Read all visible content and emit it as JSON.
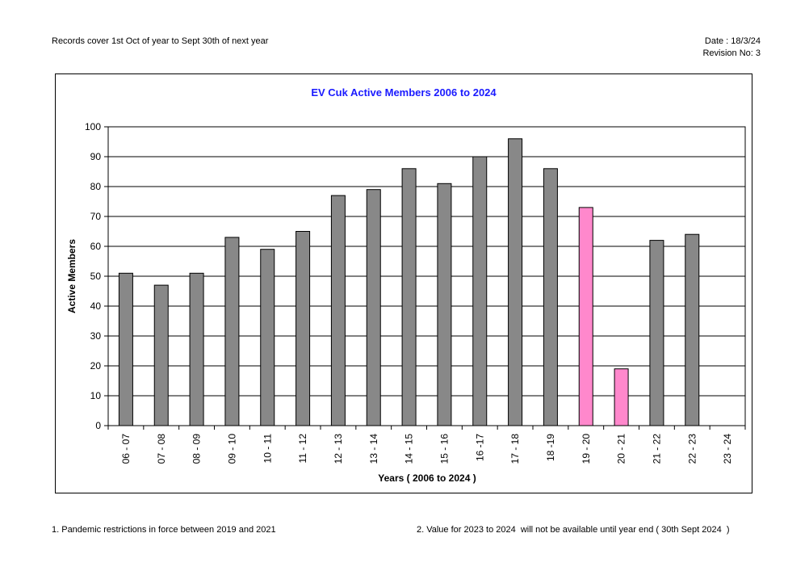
{
  "header": {
    "records_note": "Records cover 1st Oct of year to Sept 30th of next year",
    "date": "Date : 18/3/24",
    "revision": "Revision No: 3"
  },
  "chart_data": {
    "type": "bar",
    "title": "EV Cuk Active Members 2006 to 2024",
    "xlabel": "Years ( 2006 to 2024 )",
    "ylabel": "Active Members",
    "ylim": [
      0,
      100
    ],
    "yticks": [
      0,
      10,
      20,
      30,
      40,
      50,
      60,
      70,
      80,
      90,
      100
    ],
    "grid": true,
    "categories": [
      "06 - 07",
      "07 - 08",
      "08 - 09",
      "09 - 10",
      "10 - 11",
      "11 - 12",
      "12 - 13",
      "13 - 14",
      "14 - 15",
      "15 - 16",
      "16 -17",
      "17 - 18",
      "18 -19",
      "19 - 20",
      "20 - 21",
      "21 - 22",
      "22 - 23",
      "23 - 24"
    ],
    "values": [
      51,
      47,
      51,
      63,
      59,
      65,
      77,
      79,
      86,
      81,
      90,
      96,
      86,
      73,
      19,
      62,
      64,
      null
    ],
    "colors": {
      "default": "#888888",
      "highlight": "#ff88cc",
      "title": "#1a1aff"
    },
    "highlight_categories": [
      "19 - 20",
      "20 - 21"
    ]
  },
  "notes": {
    "note1": "1. Pandemic restrictions in force between 2019 and 2021",
    "note2": "2. Value for 2023 to 2024  will not be available until year end ( 30th Sept 2024  )"
  }
}
